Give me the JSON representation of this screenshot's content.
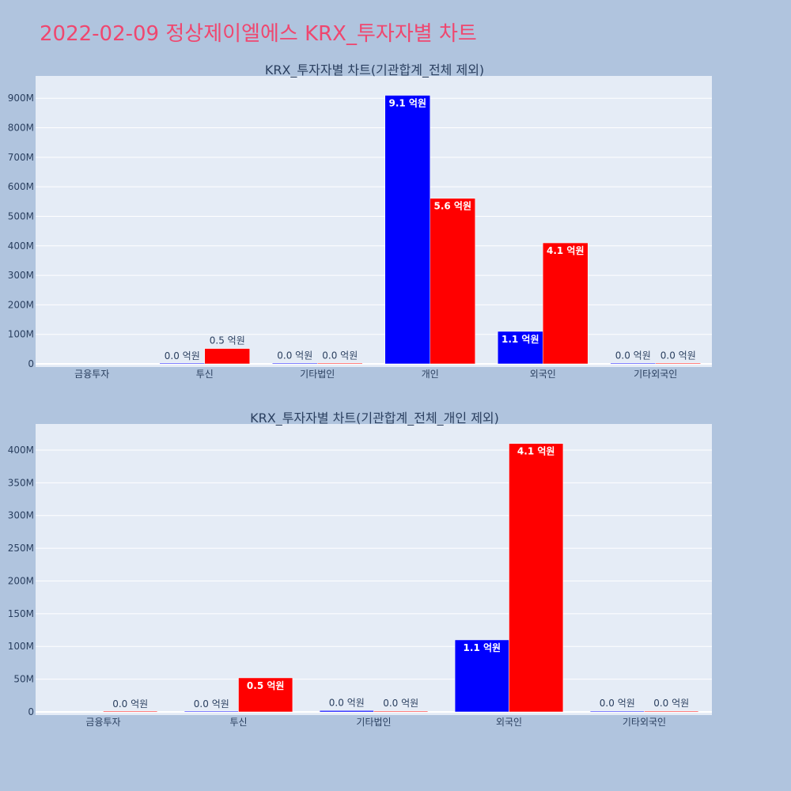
{
  "page": {
    "title": "2022-02-09 정상제이엘에스 KRX_투자자별 차트"
  },
  "colors": {
    "buy": "#0000ff",
    "sell": "#ff0000",
    "title": "#ef476f",
    "text": "#2a3f5f",
    "plot_bg": "#e5ecf6",
    "paper_bg": "#b0c4de"
  },
  "chart_data": [
    {
      "type": "bar",
      "title": "KRX_투자자별 차트(기관합계_전체 제외)",
      "xlabel": "",
      "ylabel": "",
      "categories": [
        "금융투자",
        "투신",
        "기타법인",
        "개인",
        "외국인",
        "기타외국인"
      ],
      "ylim": [
        0,
        965000000
      ],
      "yticks": [
        0,
        100000000,
        200000000,
        300000000,
        400000000,
        500000000,
        600000000,
        700000000,
        800000000,
        900000000
      ],
      "ytick_labels": [
        "0",
        "100M",
        "200M",
        "300M",
        "400M",
        "500M",
        "600M",
        "700M",
        "800M",
        "900M"
      ],
      "grid": true,
      "series": [
        {
          "values": [
            null,
            0,
            2000000,
            910000000,
            110000000,
            1000000
          ],
          "labels": [
            "",
            "0.0 억원",
            "0.0 억원",
            "9.1 억원",
            "1.1 억원",
            "0.0 억원"
          ]
        },
        {
          "values": [
            null,
            52000000,
            1000000,
            561000000,
            410000000,
            1000000
          ],
          "labels": [
            "",
            "0.5 억원",
            "0.0 억원",
            "5.6 억원",
            "4.1 억원",
            "0.0 억원"
          ]
        }
      ]
    },
    {
      "type": "bar",
      "title": "KRX_투자자별 차트(기관합계_전체_개인 제외)",
      "xlabel": "",
      "ylabel": "",
      "categories": [
        "금융투자",
        "투신",
        "기타법인",
        "외국인",
        "기타외국인"
      ],
      "ylim": [
        0,
        435000000
      ],
      "yticks": [
        0,
        50000000,
        100000000,
        150000000,
        200000000,
        250000000,
        300000000,
        350000000,
        400000000
      ],
      "ytick_labels": [
        "0",
        "50M",
        "100M",
        "150M",
        "200M",
        "250M",
        "300M",
        "350M",
        "400M"
      ],
      "grid": true,
      "series": [
        {
          "values": [
            null,
            0,
            2000000,
            110000000,
            1000000
          ],
          "labels": [
            "",
            "0.0 억원",
            "0.0 억원",
            "1.1 억원",
            "0.0 억원"
          ]
        },
        {
          "values": [
            0,
            52000000,
            1000000,
            410000000,
            1000000
          ],
          "labels": [
            "0.0 억원",
            "0.5 억원",
            "0.0 억원",
            "4.1 억원",
            "0.0 억원"
          ]
        }
      ]
    }
  ]
}
